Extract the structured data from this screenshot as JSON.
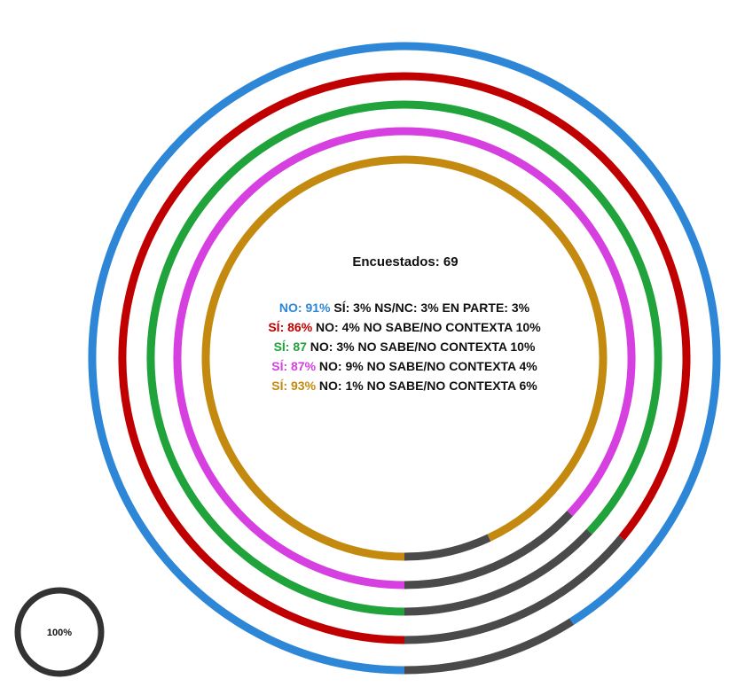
{
  "chart_data": {
    "type": "radial-bar",
    "title": "Encuestados: 69",
    "legend_reference": {
      "label": "100%",
      "color": "#333333"
    },
    "remainder_color": "#4a4a4a",
    "series": [
      {
        "ring": 1,
        "color": "#2e86d6",
        "highlight_value": 91,
        "segments": [
          {
            "label": "NO: 91%",
            "value": 91,
            "color": "#2e86d6"
          },
          {
            "label": "SÍ: 3%",
            "value": 3,
            "color": "#111111"
          },
          {
            "label": "NS/NC: 3%",
            "value": 3,
            "color": "#111111"
          },
          {
            "label": "EN PARTE: 3%",
            "value": 3,
            "color": "#111111"
          }
        ]
      },
      {
        "ring": 2,
        "color": "#c00000",
        "highlight_value": 86,
        "segments": [
          {
            "label": "SÍ: 86%",
            "value": 86,
            "color": "#c00000"
          },
          {
            "label": "NO: 4%",
            "value": 4,
            "color": "#111111"
          },
          {
            "label": "NO SABE/NO CONTEXTA 10%",
            "value": 10,
            "color": "#111111"
          }
        ]
      },
      {
        "ring": 3,
        "color": "#1fa33a",
        "highlight_value": 87,
        "segments": [
          {
            "label": "SÍ: 87",
            "value": 87,
            "color": "#1fa33a"
          },
          {
            "label": "NO: 3%",
            "value": 3,
            "color": "#111111"
          },
          {
            "label": "NO SABE/NO CONTEXTA 10%",
            "value": 10,
            "color": "#111111"
          }
        ]
      },
      {
        "ring": 4,
        "color": "#d63fe0",
        "highlight_value": 87,
        "segments": [
          {
            "label": "SÍ: 87%",
            "value": 87,
            "color": "#d63fe0"
          },
          {
            "label": "NO: 9%",
            "value": 9,
            "color": "#111111"
          },
          {
            "label": "NO SABE/NO CONTEXTA 4%",
            "value": 4,
            "color": "#111111"
          }
        ]
      },
      {
        "ring": 5,
        "color": "#c48a10",
        "highlight_value": 93,
        "segments": [
          {
            "label": "SÍ: 93%",
            "value": 93,
            "color": "#c48a10"
          },
          {
            "label": "NO: 1%",
            "value": 1,
            "color": "#111111"
          },
          {
            "label": "NO SABE/NO CONTEXTA 6%",
            "value": 6,
            "color": "#111111"
          }
        ]
      }
    ]
  }
}
